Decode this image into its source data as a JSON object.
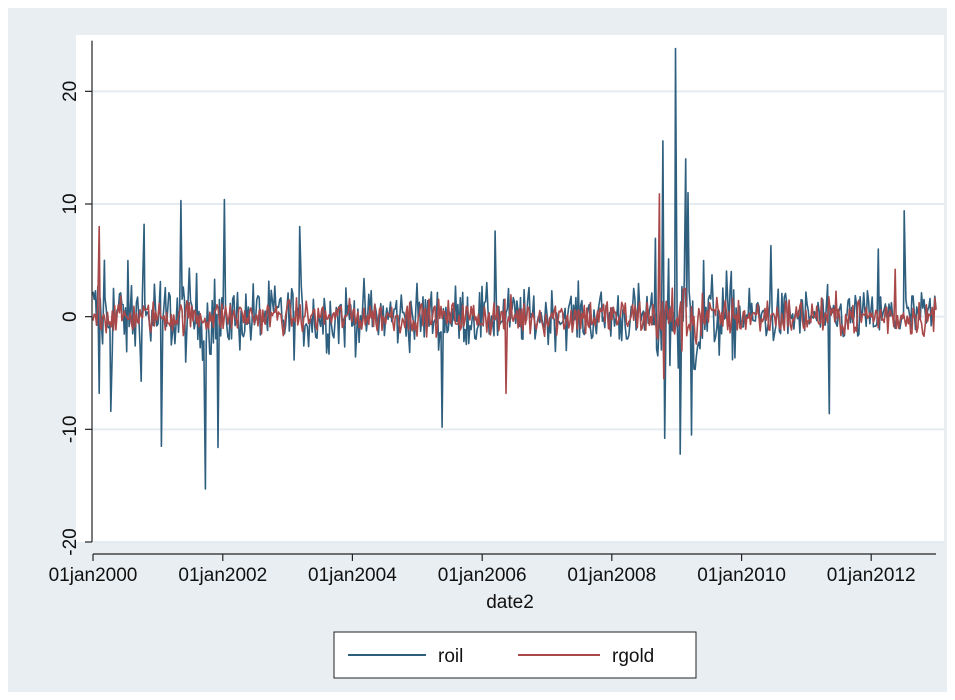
{
  "chart_data": {
    "type": "line",
    "xlabel": "date2",
    "ylabel": "",
    "ylim": [
      -20,
      25
    ],
    "yticks": [
      -20,
      -10,
      0,
      10,
      20
    ],
    "x_range": [
      "01jan2000",
      "31dec2012"
    ],
    "xticks": [
      "01jan2000",
      "01jan2002",
      "01jan2004",
      "01jan2006",
      "01jan2008",
      "01jan2010",
      "01jan2012"
    ],
    "grid": "horizontal",
    "legend_position": "bottom",
    "series": [
      {
        "name": "roil",
        "color": "#2f5f7f",
        "noise_sd": [
          {
            "from": "01jan2000",
            "to": "01jan2001",
            "sd": 3.0
          },
          {
            "from": "01jan2001",
            "to": "01jan2002",
            "sd": 2.6
          },
          {
            "from": "01jan2002",
            "to": "01jan2004",
            "sd": 2.1
          },
          {
            "from": "01jan2004",
            "to": "01jan2006",
            "sd": 1.9
          },
          {
            "from": "01jan2006",
            "to": "01jan2008",
            "sd": 1.7
          },
          {
            "from": "01jan2008",
            "to": "01sep2008",
            "sd": 1.9
          },
          {
            "from": "01sep2008",
            "to": "01jun2009",
            "sd": 4.2
          },
          {
            "from": "01jun2009",
            "to": "01jan2010",
            "sd": 2.6
          },
          {
            "from": "01jan2010",
            "to": "31dec2012",
            "sd": 1.6
          }
        ],
        "extremes": [
          {
            "date": "05mar2000",
            "value": 5.0
          },
          {
            "date": "05feb2000",
            "value": -6.8
          },
          {
            "date": "10apr2000",
            "value": -8.4
          },
          {
            "date": "15oct2000",
            "value": 8.2
          },
          {
            "date": "20jan2001",
            "value": -11.5
          },
          {
            "date": "10may2001",
            "value": 10.3
          },
          {
            "date": "25sep2001",
            "value": -15.3
          },
          {
            "date": "10jan2002",
            "value": 10.4
          },
          {
            "date": "05dec2001",
            "value": -11.6
          },
          {
            "date": "10mar2003",
            "value": 8.0
          },
          {
            "date": "20may2005",
            "value": -9.8
          },
          {
            "date": "15mar2006",
            "value": 7.6
          },
          {
            "date": "15oct2008",
            "value": 15.6
          },
          {
            "date": "25dec2008",
            "value": 23.8
          },
          {
            "date": "20jan2009",
            "value": -12.2
          },
          {
            "date": "25oct2008",
            "value": -10.8
          },
          {
            "date": "20feb2009",
            "value": 14.0
          },
          {
            "date": "05mar2009",
            "value": 11.0
          },
          {
            "date": "25mar2009",
            "value": -10.5
          },
          {
            "date": "15jun2010",
            "value": 6.3
          },
          {
            "date": "10may2011",
            "value": -8.6
          },
          {
            "date": "05jul2012",
            "value": 9.4
          },
          {
            "date": "10feb2012",
            "value": 6.0
          }
        ]
      },
      {
        "name": "rgold",
        "color": "#a94848",
        "noise_sd": [
          {
            "from": "01jan2000",
            "to": "01jan2002",
            "sd": 1.0
          },
          {
            "from": "01jan2002",
            "to": "01jan2006",
            "sd": 1.0
          },
          {
            "from": "01jan2006",
            "to": "01sep2008",
            "sd": 1.2
          },
          {
            "from": "01sep2008",
            "to": "01jun2009",
            "sd": 2.1
          },
          {
            "from": "01jun2009",
            "to": "31dec2012",
            "sd": 1.2
          }
        ],
        "extremes": [
          {
            "date": "05feb2000",
            "value": 8.0
          },
          {
            "date": "15may2006",
            "value": -6.8
          },
          {
            "date": "25sep2008",
            "value": 10.9
          },
          {
            "date": "20oct2008",
            "value": -5.5
          },
          {
            "date": "15may2012",
            "value": 4.2
          }
        ]
      }
    ]
  }
}
